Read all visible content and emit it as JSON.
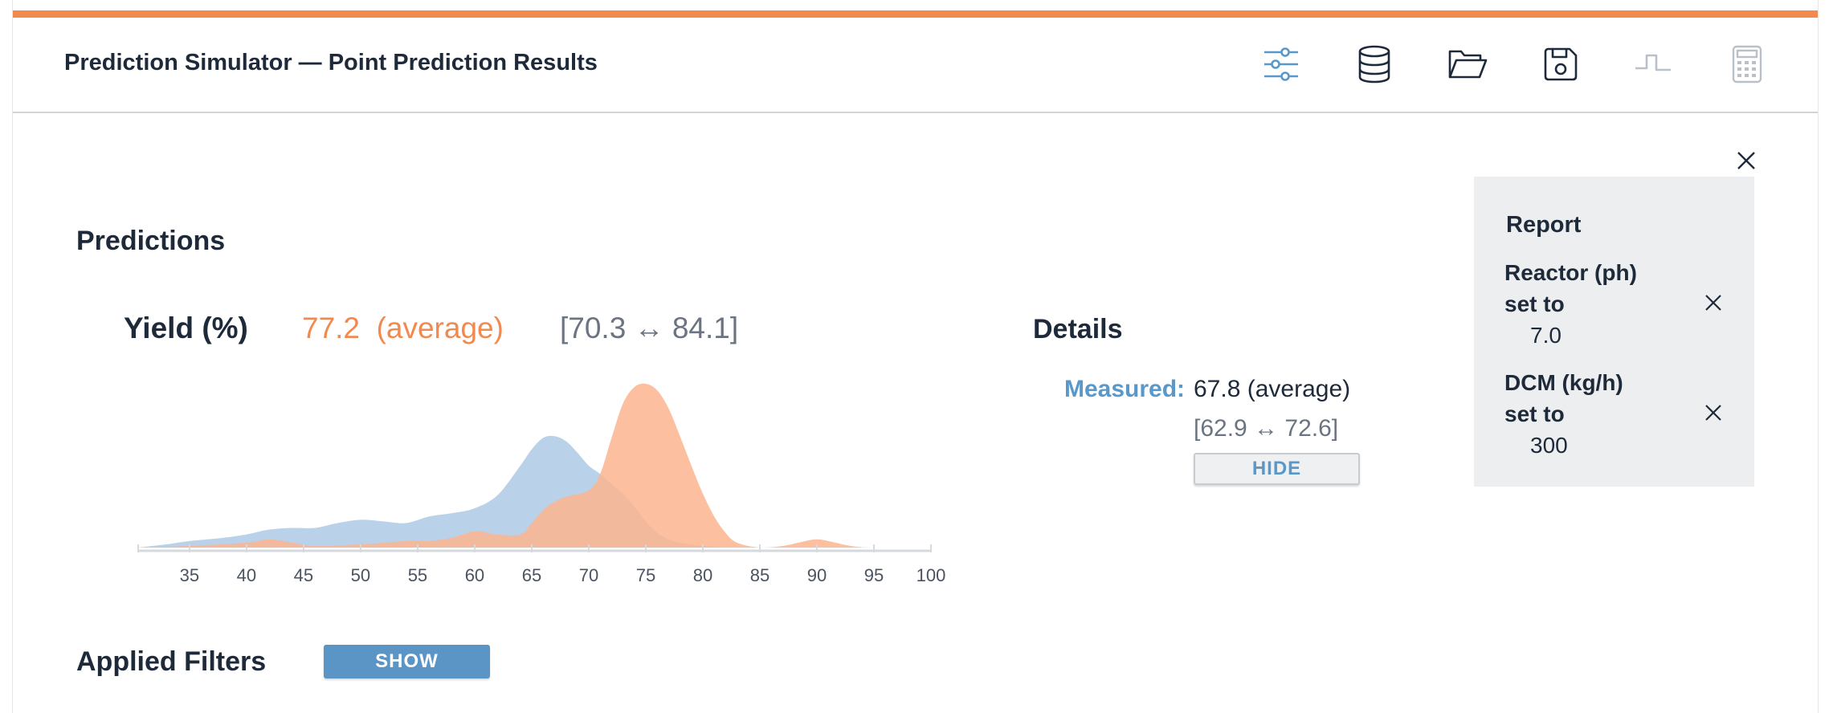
{
  "colors": {
    "accent_bar": "#f2894f",
    "predicted": "#f2894f",
    "measured": "#5a98c9",
    "text": "#1e2a3a",
    "muted": "#6b7480",
    "panel_bg": "#eceef0"
  },
  "header": {
    "title": "Prediction Simulator — Point Prediction Results",
    "tools": [
      {
        "name": "sliders-icon",
        "state": "active"
      },
      {
        "name": "database-icon",
        "state": "enabled"
      },
      {
        "name": "folder-open-icon",
        "state": "enabled"
      },
      {
        "name": "save-icon",
        "state": "enabled"
      },
      {
        "name": "step-signal-icon",
        "state": "disabled"
      },
      {
        "name": "calculator-icon",
        "state": "disabled"
      }
    ]
  },
  "predictions": {
    "section_title": "Predictions",
    "metric_name": "Yield (%)",
    "average_text": "77.2  (average)",
    "range_text": "[70.3 ↔ 84.1]"
  },
  "details": {
    "section_title": "Details",
    "measured_label": "Measured:",
    "measured_value": "67.8 (average)",
    "measured_range": "[62.9 ↔ 72.6]",
    "hide_label": "HIDE"
  },
  "applied_filters": {
    "section_title": "Applied Filters",
    "show_label": "SHOW"
  },
  "report": {
    "title": "Report",
    "items": [
      {
        "name": "Reactor (ph)",
        "set_to": "set to",
        "value": "7.0"
      },
      {
        "name": "DCM (kg/h)",
        "set_to": "set to",
        "value": "300"
      }
    ]
  },
  "chart_data": {
    "type": "area",
    "x_ticks": [
      35,
      40,
      45,
      50,
      55,
      60,
      65,
      70,
      75,
      80,
      85,
      90,
      95,
      100
    ],
    "xlim": [
      30.5,
      100
    ],
    "ylim": [
      0,
      1
    ],
    "series": [
      {
        "role": "measured",
        "color": "#a9c7e3",
        "x": [
          30.5,
          33,
          35,
          38,
          40,
          42,
          44,
          46,
          48,
          50,
          52,
          54,
          56,
          58,
          60,
          62,
          64,
          65,
          66,
          67,
          68,
          69,
          70,
          71,
          72,
          73,
          74,
          75,
          76,
          77,
          78,
          80,
          82,
          85,
          90,
          100
        ],
        "y": [
          0.0,
          0.02,
          0.04,
          0.06,
          0.08,
          0.11,
          0.12,
          0.12,
          0.15,
          0.17,
          0.16,
          0.15,
          0.19,
          0.21,
          0.24,
          0.32,
          0.5,
          0.6,
          0.67,
          0.68,
          0.65,
          0.58,
          0.5,
          0.45,
          0.39,
          0.33,
          0.25,
          0.16,
          0.09,
          0.05,
          0.03,
          0.01,
          0.0,
          0.0,
          0.0,
          0.0
        ]
      },
      {
        "role": "predicted",
        "color": "#fbb58f",
        "x": [
          30.5,
          35,
          40,
          42,
          44,
          46,
          50,
          54,
          56,
          58,
          60,
          62,
          64,
          65,
          66,
          67,
          68,
          70,
          71,
          72,
          73,
          74,
          75,
          76,
          77,
          78,
          79,
          80,
          81,
          82,
          83,
          85,
          87,
          89,
          90,
          91,
          93,
          95,
          100
        ],
        "y": [
          0.0,
          0.01,
          0.03,
          0.05,
          0.03,
          0.01,
          0.02,
          0.04,
          0.04,
          0.06,
          0.1,
          0.08,
          0.08,
          0.15,
          0.23,
          0.28,
          0.31,
          0.35,
          0.45,
          0.67,
          0.88,
          0.98,
          1.0,
          0.96,
          0.85,
          0.68,
          0.5,
          0.33,
          0.19,
          0.09,
          0.03,
          0.0,
          0.01,
          0.04,
          0.05,
          0.04,
          0.01,
          0.0,
          0.0
        ]
      }
    ],
    "grid": false,
    "legend": "none"
  }
}
